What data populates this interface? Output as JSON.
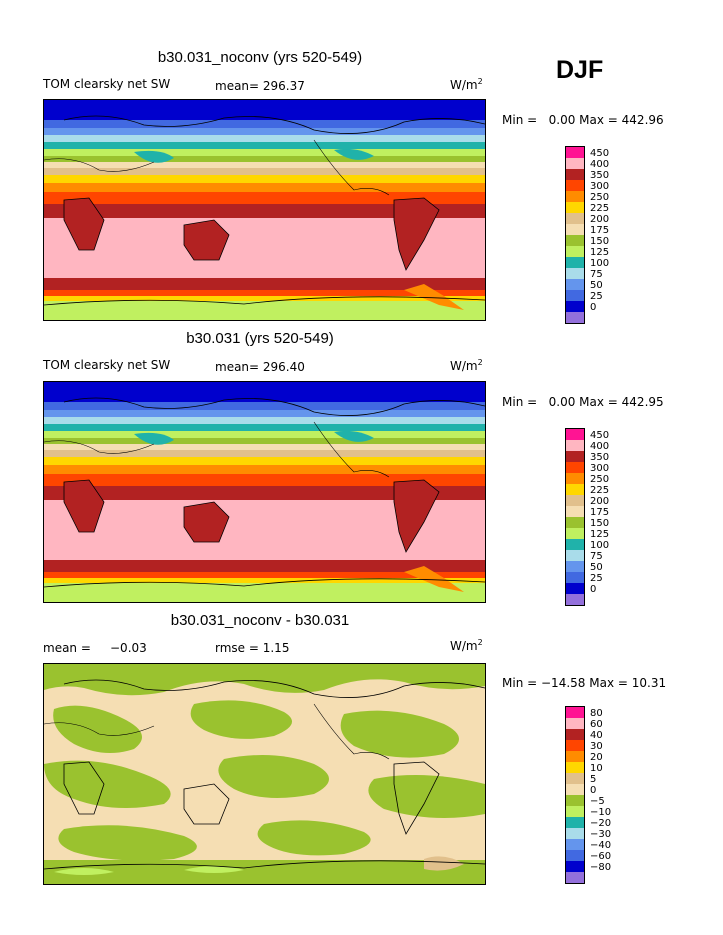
{
  "season": "DJF",
  "panels": [
    {
      "title": "b30.031_noconv (yrs 520-549)",
      "left_label": "TOM clearsky net SW",
      "mean_text": "mean= 296.37",
      "rmse_text": "",
      "units": "W/m",
      "units_exp": "2",
      "min_text": "Min =",
      "min_value": "0.00",
      "max_text": "Max = 442.96",
      "colorbar": {
        "colors": [
          "#ff1493",
          "#ffb6c1",
          "#b22222",
          "#ff4500",
          "#ff8c00",
          "#ffd700",
          "#e1c08c",
          "#f5deb3",
          "#9ac22f",
          "#c0f060",
          "#20b2aa",
          "#a9dcea",
          "#6495ed",
          "#4169e1",
          "#0000cd",
          "#9370db"
        ],
        "labels": [
          "450",
          "400",
          "350",
          "300",
          "250",
          "225",
          "200",
          "175",
          "150",
          "125",
          "100",
          "75",
          "50",
          "25",
          "0"
        ]
      }
    },
    {
      "title": "b30.031 (yrs 520-549)",
      "left_label": "TOM clearsky net SW",
      "mean_text": "mean= 296.40",
      "rmse_text": "",
      "units": "W/m",
      "units_exp": "2",
      "min_text": "Min =",
      "min_value": "0.00",
      "max_text": "Max = 442.95",
      "colorbar": {
        "colors": [
          "#ff1493",
          "#ffb6c1",
          "#b22222",
          "#ff4500",
          "#ff8c00",
          "#ffd700",
          "#e1c08c",
          "#f5deb3",
          "#9ac22f",
          "#c0f060",
          "#20b2aa",
          "#a9dcea",
          "#6495ed",
          "#4169e1",
          "#0000cd",
          "#9370db"
        ],
        "labels": [
          "450",
          "400",
          "350",
          "300",
          "250",
          "225",
          "200",
          "175",
          "150",
          "125",
          "100",
          "75",
          "50",
          "25",
          "0"
        ]
      }
    },
    {
      "title": "b30.031_noconv - b30.031",
      "left_label": "mean =",
      "mean_text": "−0.03",
      "rmse_text": "rmse =    1.15",
      "units": "W/m",
      "units_exp": "2",
      "min_text": "Min =",
      "min_value": "−14.58",
      "max_text": "Max =  10.31",
      "colorbar": {
        "colors": [
          "#ff1493",
          "#ffb6c1",
          "#b22222",
          "#ff4500",
          "#ff8c00",
          "#ffd700",
          "#e1c08c",
          "#f5deb3",
          "#9ac22f",
          "#c0f060",
          "#20b2aa",
          "#a9dcea",
          "#6495ed",
          "#4169e1",
          "#0000cd",
          "#9370db"
        ],
        "labels": [
          "80",
          "60",
          "40",
          "30",
          "20",
          "10",
          "5",
          "0",
          "−5",
          "−10",
          "−20",
          "−30",
          "−40",
          "−60",
          "−80"
        ]
      }
    }
  ]
}
